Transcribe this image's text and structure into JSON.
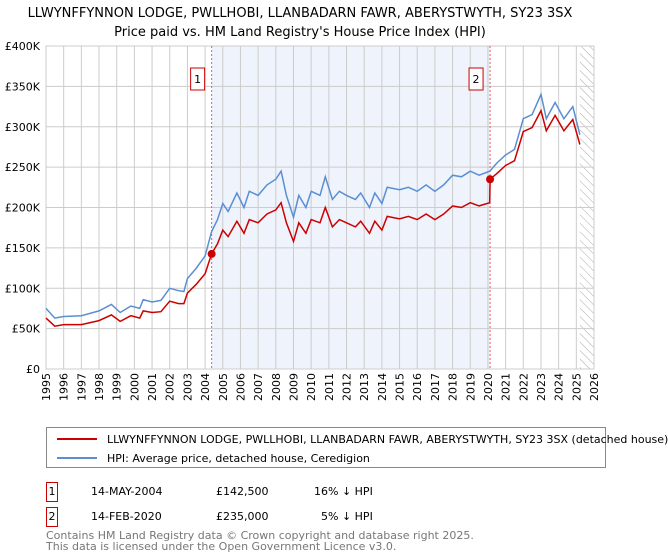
{
  "chart_data": {
    "type": "line",
    "title": "LLWYNFFYNNON LODGE, PWLLHOBI, LLANBADARN FAWR, ABERYSTWYTH, SY23 3SX",
    "subtitle": "Price paid vs. HM Land Registry's House Price Index (HPI)",
    "xlim": [
      1995,
      2026
    ],
    "ylim": [
      0,
      400000
    ],
    "x_ticks": [
      "1995",
      "1996",
      "1997",
      "1998",
      "1999",
      "2000",
      "2001",
      "2002",
      "2003",
      "2004",
      "2005",
      "2006",
      "2007",
      "2008",
      "2009",
      "2010",
      "2011",
      "2012",
      "2013",
      "2014",
      "2015",
      "2016",
      "2017",
      "2018",
      "2019",
      "2020",
      "2021",
      "2022",
      "2023",
      "2024",
      "2025",
      "2026"
    ],
    "y_ticks": [
      {
        "value": 0,
        "label": "£0"
      },
      {
        "value": 50000,
        "label": "£50K"
      },
      {
        "value": 100000,
        "label": "£100K"
      },
      {
        "value": 150000,
        "label": "£150K"
      },
      {
        "value": 200000,
        "label": "£200K"
      },
      {
        "value": 250000,
        "label": "£250K"
      },
      {
        "value": 300000,
        "label": "£300K"
      },
      {
        "value": 350000,
        "label": "£350K"
      },
      {
        "value": 400000,
        "label": "£400K"
      }
    ],
    "grid": true,
    "shaded_range": [
      2004.37,
      2020.12
    ],
    "forecast_hatch_from": 2025.2,
    "series": [
      {
        "name": "LLWYNFFYNNON LODGE, PWLLHOBI, LLANBADARN FAWR, ABERYSTWYTH, SY23 3SX (detached house)",
        "color": "#cc0000",
        "points": [
          [
            1995,
            63000
          ],
          [
            1995.5,
            53000
          ],
          [
            1996,
            55000
          ],
          [
            1997,
            55000
          ],
          [
            1998,
            60000
          ],
          [
            1998.7,
            67000
          ],
          [
            1999.2,
            59000
          ],
          [
            1999.8,
            66000
          ],
          [
            2000.3,
            63000
          ],
          [
            2000.5,
            72000
          ],
          [
            2001,
            70000
          ],
          [
            2001.5,
            71000
          ],
          [
            2002,
            84000
          ],
          [
            2002.5,
            81000
          ],
          [
            2002.8,
            81000
          ],
          [
            2003,
            94000
          ],
          [
            2003.5,
            105000
          ],
          [
            2004,
            118000
          ],
          [
            2004.37,
            142500
          ],
          [
            2004.7,
            155000
          ],
          [
            2005,
            172000
          ],
          [
            2005.3,
            164000
          ],
          [
            2005.8,
            183000
          ],
          [
            2006.2,
            168000
          ],
          [
            2006.5,
            185000
          ],
          [
            2007,
            181000
          ],
          [
            2007.5,
            192000
          ],
          [
            2008,
            197000
          ],
          [
            2008.3,
            206000
          ],
          [
            2008.6,
            181000
          ],
          [
            2009,
            158000
          ],
          [
            2009.3,
            181000
          ],
          [
            2009.7,
            168000
          ],
          [
            2010,
            185000
          ],
          [
            2010.5,
            181000
          ],
          [
            2010.8,
            200000
          ],
          [
            2011.2,
            176000
          ],
          [
            2011.6,
            185000
          ],
          [
            2012,
            181000
          ],
          [
            2012.5,
            176000
          ],
          [
            2012.8,
            183000
          ],
          [
            2013.3,
            168000
          ],
          [
            2013.6,
            183000
          ],
          [
            2014,
            172000
          ],
          [
            2014.3,
            189000
          ],
          [
            2015,
            186000
          ],
          [
            2015.5,
            189000
          ],
          [
            2016,
            185000
          ],
          [
            2016.5,
            192000
          ],
          [
            2017,
            185000
          ],
          [
            2017.5,
            192000
          ],
          [
            2018,
            202000
          ],
          [
            2018.5,
            200000
          ],
          [
            2019,
            206000
          ],
          [
            2019.5,
            202000
          ],
          [
            2020.1,
            206000
          ],
          [
            2020.12,
            235000
          ],
          [
            2020.5,
            242000
          ],
          [
            2021,
            252000
          ],
          [
            2021.5,
            258000
          ],
          [
            2022,
            294000
          ],
          [
            2022.5,
            299000
          ],
          [
            2023,
            320000
          ],
          [
            2023.3,
            295000
          ],
          [
            2023.8,
            314000
          ],
          [
            2024.3,
            295000
          ],
          [
            2024.8,
            309000
          ],
          [
            2025.2,
            278000
          ]
        ]
      },
      {
        "name": "HPI: Average price, detached house, Ceredigion",
        "color": "#5b8fd1",
        "points": [
          [
            1995,
            75000
          ],
          [
            1995.5,
            63000
          ],
          [
            1996,
            65000
          ],
          [
            1997,
            66000
          ],
          [
            1998,
            72000
          ],
          [
            1998.7,
            80000
          ],
          [
            1999.2,
            70000
          ],
          [
            1999.8,
            78000
          ],
          [
            2000.3,
            75000
          ],
          [
            2000.5,
            86000
          ],
          [
            2001,
            83000
          ],
          [
            2001.5,
            85000
          ],
          [
            2002,
            100000
          ],
          [
            2002.5,
            97000
          ],
          [
            2002.8,
            96000
          ],
          [
            2003,
            112000
          ],
          [
            2003.5,
            125000
          ],
          [
            2004,
            140000
          ],
          [
            2004.37,
            170000
          ],
          [
            2004.7,
            185000
          ],
          [
            2005,
            205000
          ],
          [
            2005.3,
            195000
          ],
          [
            2005.8,
            218000
          ],
          [
            2006.2,
            200000
          ],
          [
            2006.5,
            220000
          ],
          [
            2007,
            215000
          ],
          [
            2007.5,
            228000
          ],
          [
            2008,
            235000
          ],
          [
            2008.3,
            245000
          ],
          [
            2008.6,
            215000
          ],
          [
            2009,
            188000
          ],
          [
            2009.3,
            215000
          ],
          [
            2009.7,
            200000
          ],
          [
            2010,
            220000
          ],
          [
            2010.5,
            215000
          ],
          [
            2010.8,
            238000
          ],
          [
            2011.2,
            210000
          ],
          [
            2011.6,
            220000
          ],
          [
            2012,
            215000
          ],
          [
            2012.5,
            210000
          ],
          [
            2012.8,
            218000
          ],
          [
            2013.3,
            200000
          ],
          [
            2013.6,
            218000
          ],
          [
            2014,
            205000
          ],
          [
            2014.3,
            225000
          ],
          [
            2015,
            222000
          ],
          [
            2015.5,
            225000
          ],
          [
            2016,
            220000
          ],
          [
            2016.5,
            228000
          ],
          [
            2017,
            220000
          ],
          [
            2017.5,
            228000
          ],
          [
            2018,
            240000
          ],
          [
            2018.5,
            238000
          ],
          [
            2019,
            245000
          ],
          [
            2019.5,
            240000
          ],
          [
            2020.1,
            245000
          ],
          [
            2020.5,
            255000
          ],
          [
            2021,
            265000
          ],
          [
            2021.5,
            272000
          ],
          [
            2022,
            310000
          ],
          [
            2022.5,
            315000
          ],
          [
            2023,
            340000
          ],
          [
            2023.3,
            310000
          ],
          [
            2023.8,
            330000
          ],
          [
            2024.3,
            310000
          ],
          [
            2024.8,
            325000
          ],
          [
            2025.2,
            290000
          ]
        ]
      }
    ],
    "annotations": [
      {
        "label": "1",
        "x": 2004.37,
        "y": 142500
      },
      {
        "label": "2",
        "x": 2020.12,
        "y": 235000
      }
    ]
  },
  "legend": {
    "property": "LLWYNFFYNNON LODGE, PWLLHOBI, LLANBADARN FAWR, ABERYSTWYTH, SY23 3SX (detached house)",
    "hpi": "HPI: Average price, detached house, Ceredigion"
  },
  "sales": [
    {
      "num": "1",
      "date": "14-MAY-2004",
      "price": "£142,500",
      "diff": "16% ↓ HPI"
    },
    {
      "num": "2",
      "date": "14-FEB-2020",
      "price": "£235,000",
      "diff": "5% ↓ HPI"
    }
  ],
  "footer": {
    "line1": "Contains HM Land Registry data © Crown copyright and database right 2025.",
    "line2": "This data is licensed under the Open Government Licence v3.0."
  }
}
